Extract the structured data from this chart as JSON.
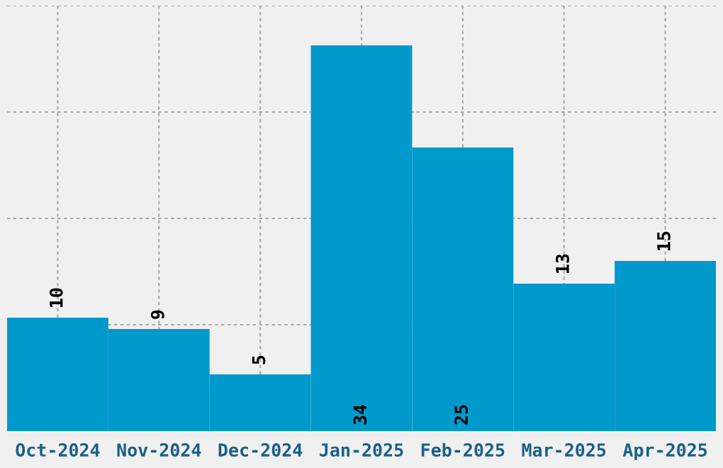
{
  "chart_data": {
    "type": "bar",
    "categories": [
      "Oct-2024",
      "Nov-2024",
      "Dec-2024",
      "Jan-2025",
      "Feb-2025",
      "Mar-2025",
      "Apr-2025"
    ],
    "values": [
      10,
      9,
      5,
      34,
      25,
      13,
      15
    ],
    "color": "#0099cc",
    "data_labels": true,
    "ylim": [
      0,
      37.5
    ],
    "yticks": [
      {
        "value": 9.375,
        "label": null
      },
      {
        "value": 18.75,
        "label": null
      },
      {
        "value": 28.125,
        "label": null
      },
      {
        "value": 37.5,
        "label": null
      }
    ],
    "tick_labels": "x",
    "grid": true
  }
}
